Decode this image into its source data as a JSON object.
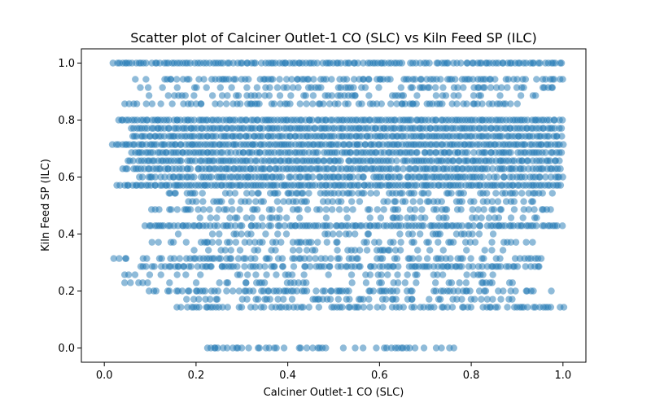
{
  "chart_data": {
    "type": "scatter",
    "title": "Scatter plot of Calciner Outlet-1 CO (SLC) vs Kiln Feed  SP  (ILC)",
    "xlabel": "Calciner Outlet-1 CO (SLC)",
    "ylabel": "Kiln Feed  SP  (ILC)",
    "xlim": [
      -0.05,
      1.05
    ],
    "ylim": [
      -0.05,
      1.05
    ],
    "xticks": [
      0.0,
      0.2,
      0.4,
      0.6,
      0.8,
      1.0
    ],
    "xtick_labels": [
      "0.0",
      "0.2",
      "0.4",
      "0.6",
      "0.8",
      "1.0"
    ],
    "yticks": [
      0.0,
      0.2,
      0.4,
      0.6,
      0.8,
      1.0
    ],
    "ytick_labels": [
      "0.0",
      "0.2",
      "0.4",
      "0.6",
      "0.8",
      "1.0"
    ],
    "grid": false,
    "marker_color": "#1f77b4",
    "marker_alpha": 0.5,
    "bands": [
      {
        "y": 1.0,
        "xmin": 0.02,
        "xmax": 1.0,
        "density": 0.9
      },
      {
        "y": 0.943,
        "xmin": 0.07,
        "xmax": 1.0,
        "density": 0.6
      },
      {
        "y": 0.914,
        "xmin": 0.08,
        "xmax": 0.98,
        "density": 0.45
      },
      {
        "y": 0.886,
        "xmin": 0.1,
        "xmax": 0.95,
        "density": 0.35
      },
      {
        "y": 0.857,
        "xmin": 0.04,
        "xmax": 0.9,
        "density": 0.55
      },
      {
        "y": 0.8,
        "xmin": 0.03,
        "xmax": 1.0,
        "density": 1.0
      },
      {
        "y": 0.771,
        "xmin": 0.06,
        "xmax": 1.0,
        "density": 1.0
      },
      {
        "y": 0.743,
        "xmin": 0.06,
        "xmax": 1.0,
        "density": 1.0
      },
      {
        "y": 0.714,
        "xmin": 0.02,
        "xmax": 1.0,
        "density": 1.0
      },
      {
        "y": 0.686,
        "xmin": 0.06,
        "xmax": 1.0,
        "density": 0.95
      },
      {
        "y": 0.657,
        "xmin": 0.05,
        "xmax": 1.0,
        "density": 0.95
      },
      {
        "y": 0.629,
        "xmin": 0.04,
        "xmax": 1.0,
        "density": 0.95
      },
      {
        "y": 0.6,
        "xmin": 0.07,
        "xmax": 1.0,
        "density": 0.9
      },
      {
        "y": 0.571,
        "xmin": 0.03,
        "xmax": 1.0,
        "density": 1.0
      },
      {
        "y": 0.543,
        "xmin": 0.14,
        "xmax": 0.98,
        "density": 0.5
      },
      {
        "y": 0.514,
        "xmin": 0.18,
        "xmax": 0.95,
        "density": 0.4
      },
      {
        "y": 0.486,
        "xmin": 0.1,
        "xmax": 0.98,
        "density": 0.5
      },
      {
        "y": 0.457,
        "xmin": 0.2,
        "xmax": 0.95,
        "density": 0.3
      },
      {
        "y": 0.429,
        "xmin": 0.09,
        "xmax": 1.0,
        "density": 0.9
      },
      {
        "y": 0.4,
        "xmin": 0.14,
        "xmax": 0.9,
        "density": 0.25
      },
      {
        "y": 0.371,
        "xmin": 0.09,
        "xmax": 0.95,
        "density": 0.35
      },
      {
        "y": 0.343,
        "xmin": 0.15,
        "xmax": 0.9,
        "density": 0.25
      },
      {
        "y": 0.314,
        "xmin": 0.02,
        "xmax": 0.95,
        "density": 0.55
      },
      {
        "y": 0.286,
        "xmin": 0.08,
        "xmax": 0.95,
        "density": 0.75
      },
      {
        "y": 0.257,
        "xmin": 0.03,
        "xmax": 0.85,
        "density": 0.3
      },
      {
        "y": 0.229,
        "xmin": 0.03,
        "xmax": 0.9,
        "density": 0.3
      },
      {
        "y": 0.2,
        "xmin": 0.09,
        "xmax": 0.98,
        "density": 0.55
      },
      {
        "y": 0.171,
        "xmin": 0.17,
        "xmax": 0.9,
        "density": 0.4
      },
      {
        "y": 0.143,
        "xmin": 0.16,
        "xmax": 1.0,
        "density": 0.6
      },
      {
        "y": 0.114,
        "xmin": 0.5,
        "xmax": 0.55,
        "density": 0.05
      },
      {
        "y": 0.057,
        "xmin": 0.58,
        "xmax": 0.59,
        "density": 0.05
      },
      {
        "y": 0.086,
        "xmin": 0.63,
        "xmax": 0.64,
        "density": 0.05
      },
      {
        "y": 0.0,
        "xmin": 0.22,
        "xmax": 0.77,
        "density": 0.45
      }
    ]
  }
}
